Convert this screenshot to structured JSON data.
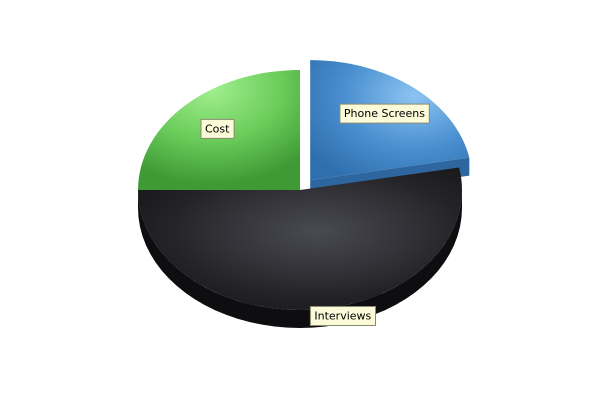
{
  "chart_data": {
    "type": "pie",
    "style": "3d-exploded",
    "legend": "none",
    "slices": [
      {
        "label": "Phone Screens",
        "value": 22,
        "color": "#4a8fd0",
        "side_color": "#2e679f",
        "exploded": true
      },
      {
        "label": "Interviews",
        "value": 53,
        "color": "#2a2a2e",
        "side_color": "#0e0e10",
        "exploded": false
      },
      {
        "label": "Cost",
        "value": 25,
        "color": "#6acc5a",
        "side_color": "#3e8f34",
        "exploded": false
      }
    ]
  }
}
